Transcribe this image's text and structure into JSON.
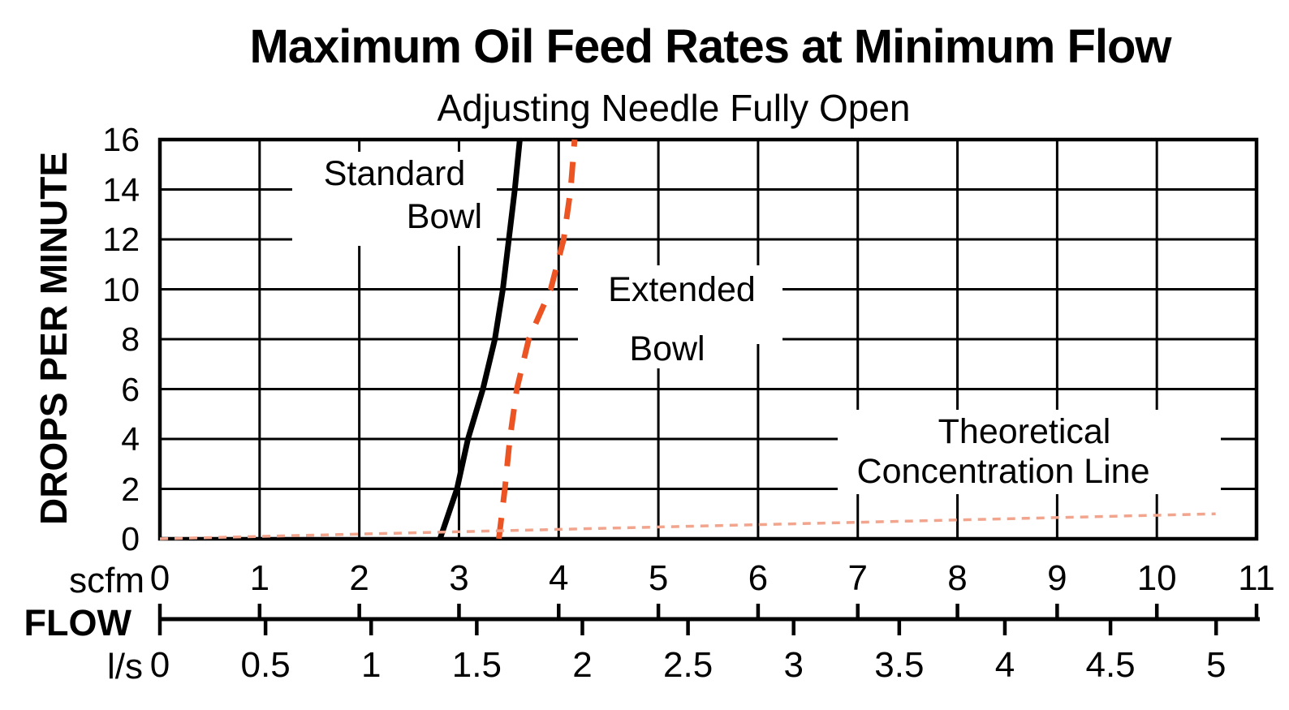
{
  "chart_data": {
    "type": "line",
    "title": "Maximum Oil Feed Rates at Minimum Flow",
    "subtitle": "Adjusting Needle Fully Open",
    "ylabel": "DROPS PER MINUTE",
    "xlabel": "FLOW",
    "ylim": [
      0,
      16
    ],
    "xlim_scfm": [
      0,
      11
    ],
    "grid": true,
    "y_ticks": [
      0,
      2,
      4,
      6,
      8,
      10,
      12,
      14,
      16
    ],
    "x_axis_units": [
      {
        "unit": "scfm",
        "ticks": [
          0,
          1,
          2,
          3,
          4,
          5,
          6,
          7,
          8,
          9,
          10,
          11
        ]
      },
      {
        "unit": "l/s",
        "ticks": [
          0,
          0.5,
          1,
          1.5,
          2,
          2.5,
          3,
          3.5,
          4,
          4.5,
          5
        ]
      }
    ],
    "series": [
      {
        "name": "Standard Bowl",
        "line_style": "solid",
        "color": "#000000",
        "x_scfm": [
          2.81,
          2.98,
          3.09,
          3.24,
          3.36,
          3.44,
          3.5,
          3.56,
          3.61
        ],
        "y_drops": [
          0,
          2,
          4,
          6,
          8,
          10,
          12,
          14,
          16
        ]
      },
      {
        "name": "Extended Bowl",
        "line_style": "dashed",
        "color": "#EC5424",
        "x_scfm": [
          3.4,
          3.46,
          3.51,
          3.58,
          3.7,
          3.92,
          4.05,
          4.12,
          4.16
        ],
        "y_drops": [
          0,
          2,
          4,
          6,
          8,
          10,
          12,
          14,
          16
        ]
      },
      {
        "name": "Theoretical Concentration Line",
        "line_style": "dotted",
        "color": "#F2A48D",
        "x_scfm": [
          0,
          10.59
        ],
        "y_drops": [
          0,
          1
        ]
      }
    ],
    "annotations": {
      "standard": {
        "lines": [
          "Standard",
          "Bowl"
        ]
      },
      "extended": {
        "lines": [
          "Extended",
          "Bowl"
        ]
      },
      "theoretical": {
        "lines": [
          "Theoretical",
          "Concentration Line"
        ]
      }
    }
  }
}
